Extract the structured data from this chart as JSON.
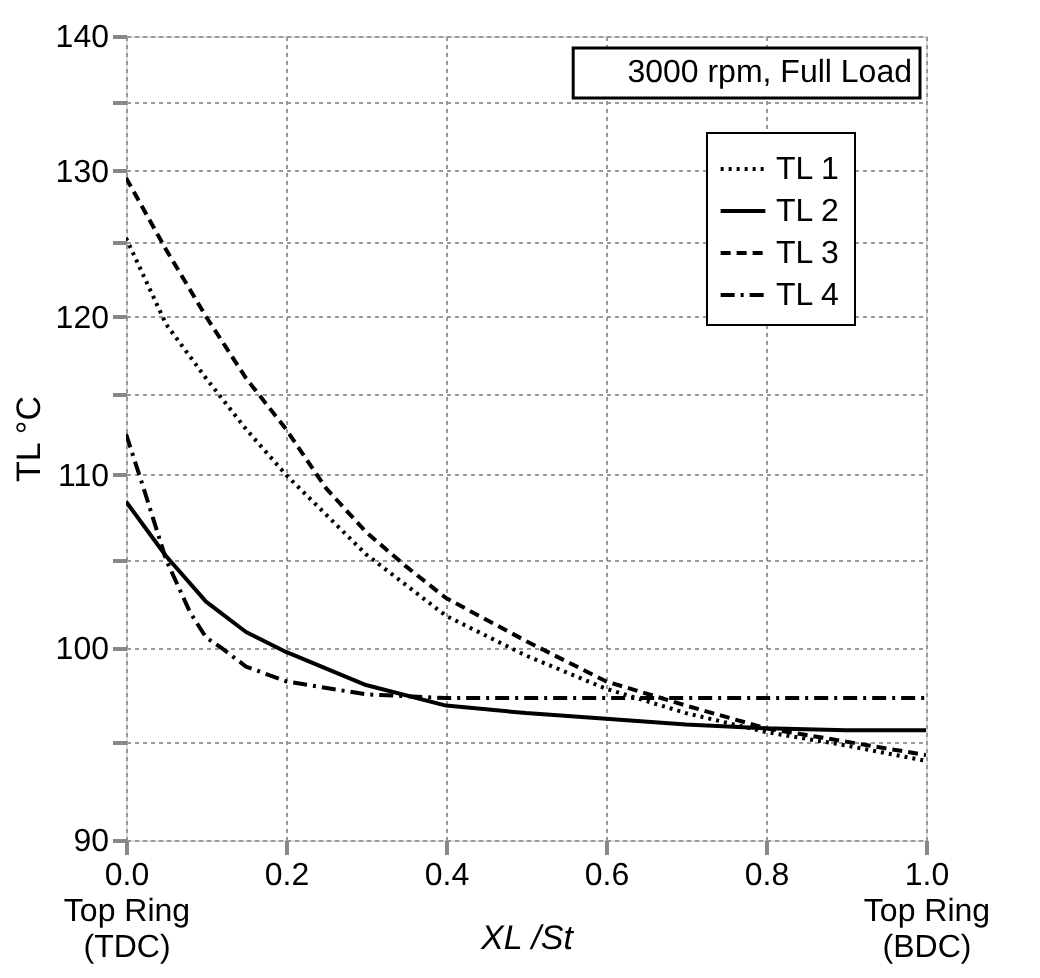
{
  "chart_data": {
    "type": "line",
    "xlabel": "XL /St",
    "ylabel": "TL °C",
    "annotations": [
      "3000 rpm, Full Load"
    ],
    "xlim": [
      0,
      1
    ],
    "ylim": [
      90,
      140
    ],
    "log": true,
    "xticks": [
      {
        "value": 0,
        "label": "0.0\nTop Ring\n(TDC)"
      },
      {
        "value": 0.2,
        "label": "0.2"
      },
      {
        "value": 0.4,
        "label": "0.4"
      },
      {
        "value": 0.6,
        "label": "0.6"
      },
      {
        "value": 0.8,
        "label": "0.8"
      },
      {
        "value": 1,
        "label": "1.0\nTop Ring\n(BDC)"
      }
    ],
    "yticks": [
      90,
      {
        "value": 95,
        "label": null
      },
      100,
      {
        "value": 105,
        "label": null
      },
      110,
      {
        "value": 115,
        "label": null
      },
      120,
      {
        "value": 125,
        "label": null
      },
      130,
      {
        "value": 135,
        "label": null
      },
      140
    ],
    "grid": true,
    "legend": "top right",
    "marker": "none",
    "series": [
      {
        "name": "TL 1",
        "color": "#000000",
        "line_style": "dotted",
        "x": [
          0,
          0.05,
          0.1,
          0.15,
          0.2,
          0.3,
          0.4,
          0.5,
          0.6,
          0.7,
          0.8,
          0.9,
          1.0
        ],
        "values": [
          125.3,
          119.5,
          116,
          112.8,
          110,
          105.3,
          101.8,
          99.6,
          97.8,
          96.5,
          95.5,
          94.8,
          94.0
        ]
      },
      {
        "name": "TL 2",
        "color": "#000000",
        "line_style": "solid",
        "x": [
          0,
          0.05,
          0.1,
          0.15,
          0.2,
          0.3,
          0.4,
          0.5,
          0.6,
          0.7,
          0.8,
          0.9,
          1.0
        ],
        "values": [
          108.4,
          105.2,
          102.6,
          100.9,
          99.8,
          98.0,
          96.9,
          96.5,
          96.2,
          95.9,
          95.7,
          95.6,
          95.6
        ]
      },
      {
        "name": "TL 3",
        "color": "#000000",
        "line_style": "dashed",
        "x": [
          0,
          0.05,
          0.1,
          0.15,
          0.2,
          0.25,
          0.3,
          0.35,
          0.4,
          0.5,
          0.6,
          0.7,
          0.8,
          0.9,
          1.0
        ],
        "values": [
          129.5,
          124.5,
          120,
          116,
          112.8,
          109.2,
          106.6,
          104.6,
          102.8,
          100.4,
          98.2,
          96.9,
          95.7,
          95.0,
          94.3
        ]
      },
      {
        "name": "TL 4",
        "color": "#000000",
        "line_style": "dashdot",
        "x": [
          0,
          0.02,
          0.05,
          0.08,
          0.1,
          0.12,
          0.15,
          0.2,
          0.3,
          0.4,
          0.6,
          0.8,
          1.0
        ],
        "values": [
          112.5,
          109.5,
          105,
          102,
          100.6,
          100,
          99.0,
          98.2,
          97.5,
          97.3,
          97.3,
          97.3,
          97.3
        ]
      }
    ]
  }
}
